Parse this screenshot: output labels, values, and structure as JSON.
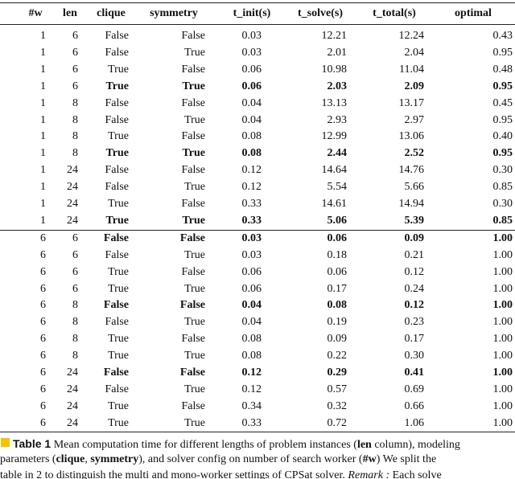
{
  "table": {
    "header": [
      "#w",
      "len",
      "clique",
      "symmetry",
      "t_init(s)",
      "t_solve(s)",
      "t_total(s)",
      "optimal"
    ],
    "rows": [
      {
        "cells": [
          "1",
          "6",
          "False",
          "False",
          "0.03",
          "12.21",
          "12.24",
          "0.43"
        ],
        "bold": false
      },
      {
        "cells": [
          "1",
          "6",
          "False",
          "True",
          "0.03",
          "2.01",
          "2.04",
          "0.95"
        ],
        "bold": false
      },
      {
        "cells": [
          "1",
          "6",
          "True",
          "False",
          "0.06",
          "10.98",
          "11.04",
          "0.48"
        ],
        "bold": false
      },
      {
        "cells": [
          "1",
          "6",
          "True",
          "True",
          "0.06",
          "2.03",
          "2.09",
          "0.95"
        ],
        "bold": true
      },
      {
        "cells": [
          "1",
          "8",
          "False",
          "False",
          "0.04",
          "13.13",
          "13.17",
          "0.45"
        ],
        "bold": false
      },
      {
        "cells": [
          "1",
          "8",
          "False",
          "True",
          "0.04",
          "2.93",
          "2.97",
          "0.95"
        ],
        "bold": false
      },
      {
        "cells": [
          "1",
          "8",
          "True",
          "False",
          "0.08",
          "12.99",
          "13.06",
          "0.40"
        ],
        "bold": false
      },
      {
        "cells": [
          "1",
          "8",
          "True",
          "True",
          "0.08",
          "2.44",
          "2.52",
          "0.95"
        ],
        "bold": true
      },
      {
        "cells": [
          "1",
          "24",
          "False",
          "False",
          "0.12",
          "14.64",
          "14.76",
          "0.30"
        ],
        "bold": false
      },
      {
        "cells": [
          "1",
          "24",
          "False",
          "True",
          "0.12",
          "5.54",
          "5.66",
          "0.85"
        ],
        "bold": false
      },
      {
        "cells": [
          "1",
          "24",
          "True",
          "False",
          "0.33",
          "14.61",
          "14.94",
          "0.30"
        ],
        "bold": false
      },
      {
        "cells": [
          "1",
          "24",
          "True",
          "True",
          "0.33",
          "5.06",
          "5.39",
          "0.85"
        ],
        "bold": true
      },
      {
        "cells": [
          "6",
          "6",
          "False",
          "False",
          "0.03",
          "0.06",
          "0.09",
          "1.00"
        ],
        "bold": true
      },
      {
        "cells": [
          "6",
          "6",
          "False",
          "True",
          "0.03",
          "0.18",
          "0.21",
          "1.00"
        ],
        "bold": false
      },
      {
        "cells": [
          "6",
          "6",
          "True",
          "False",
          "0.06",
          "0.06",
          "0.12",
          "1.00"
        ],
        "bold": false
      },
      {
        "cells": [
          "6",
          "6",
          "True",
          "True",
          "0.06",
          "0.17",
          "0.24",
          "1.00"
        ],
        "bold": false
      },
      {
        "cells": [
          "6",
          "8",
          "False",
          "False",
          "0.04",
          "0.08",
          "0.12",
          "1.00"
        ],
        "bold": true
      },
      {
        "cells": [
          "6",
          "8",
          "False",
          "True",
          "0.04",
          "0.19",
          "0.23",
          "1.00"
        ],
        "bold": false
      },
      {
        "cells": [
          "6",
          "8",
          "True",
          "False",
          "0.08",
          "0.09",
          "0.17",
          "1.00"
        ],
        "bold": false
      },
      {
        "cells": [
          "6",
          "8",
          "True",
          "True",
          "0.08",
          "0.22",
          "0.30",
          "1.00"
        ],
        "bold": false
      },
      {
        "cells": [
          "6",
          "24",
          "False",
          "False",
          "0.12",
          "0.29",
          "0.41",
          "1.00"
        ],
        "bold": true
      },
      {
        "cells": [
          "6",
          "24",
          "False",
          "True",
          "0.12",
          "0.57",
          "0.69",
          "1.00"
        ],
        "bold": false
      },
      {
        "cells": [
          "6",
          "24",
          "True",
          "False",
          "0.34",
          "0.32",
          "0.66",
          "1.00"
        ],
        "bold": false
      },
      {
        "cells": [
          "6",
          "24",
          "True",
          "True",
          "0.33",
          "0.72",
          "1.06",
          "1.00"
        ],
        "bold": false
      }
    ]
  },
  "caption": [
    [
      "Table 1",
      " Mean computation time for different lengths of problem instances (",
      "len",
      " column), modeling"
    ],
    [
      "parameters (",
      "clique",
      ", ",
      "symmetry",
      "), and solver config on number of search worker (",
      "#w",
      ") We split the"
    ],
    [
      "table in 2 to distinguish the multi and mono-worker settings of CPSat solver. ",
      "Remark :",
      " Each solve"
    ]
  ]
}
